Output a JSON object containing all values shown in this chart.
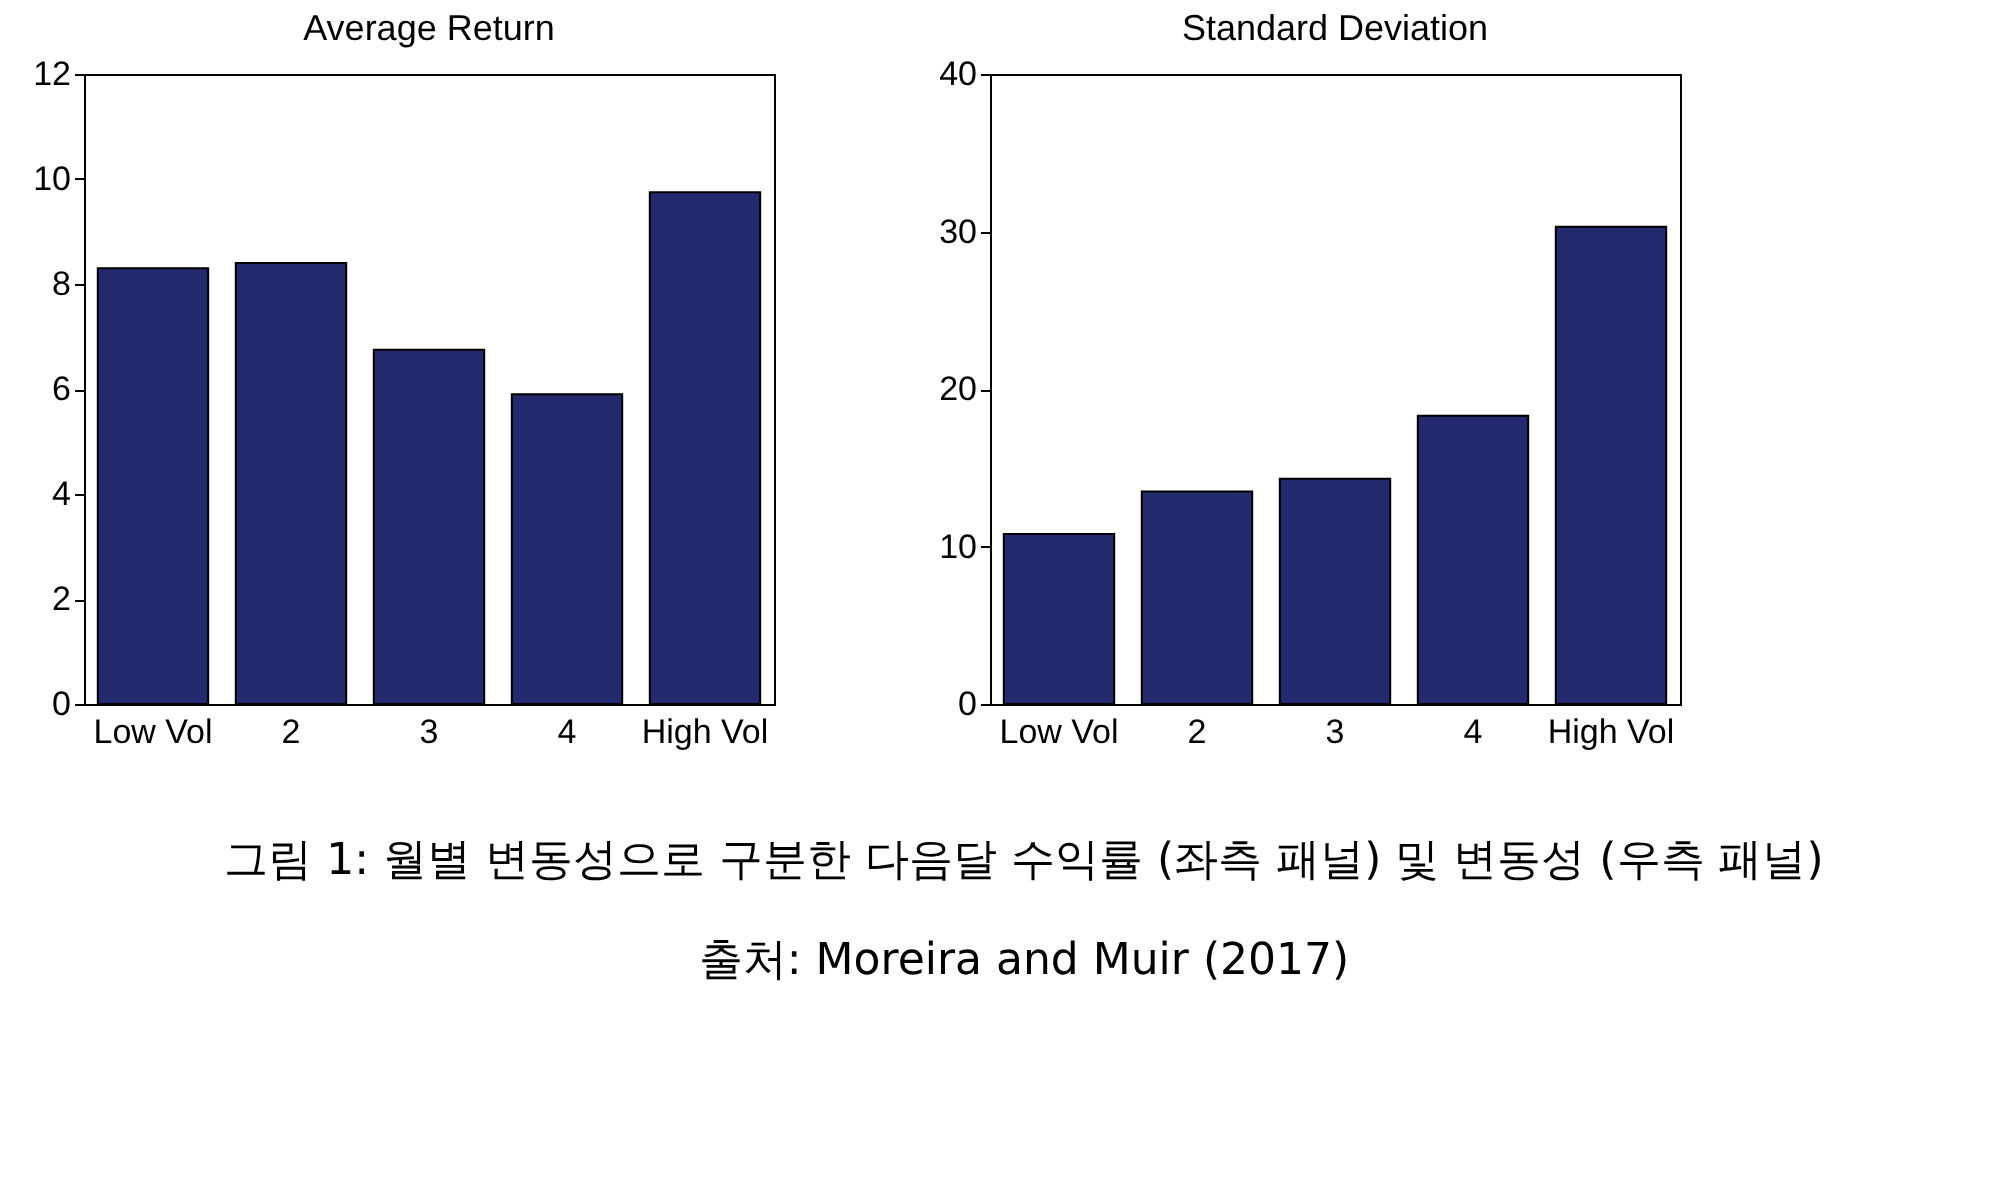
{
  "chart_data": [
    {
      "type": "bar",
      "title": "Average Return",
      "categories": [
        "Low Vol",
        "2",
        "3",
        "4",
        "High Vol"
      ],
      "values": [
        8.3,
        8.4,
        6.75,
        5.9,
        9.75
      ],
      "color": "#232a6e",
      "ylim": [
        0,
        12
      ],
      "yticks": [
        0,
        2,
        4,
        6,
        8,
        10,
        12
      ],
      "grid": false,
      "annotations": [
        "그림 1: 월별 변동성으로 구분한 다음달 수익률 (좌측 패널) 및 변동성 (우측 패널)",
        "출처: Moreira and Muir (2017)"
      ]
    },
    {
      "type": "bar",
      "title": "Standard Deviation",
      "categories": [
        "Low Vol",
        "2",
        "3",
        "4",
        "High Vol"
      ],
      "values": [
        10.8,
        13.5,
        14.3,
        18.3,
        30.3
      ],
      "color": "#232a6e",
      "ylim": [
        0,
        40
      ],
      "yticks": [
        0,
        10,
        20,
        30,
        40
      ],
      "grid": false
    }
  ]
}
